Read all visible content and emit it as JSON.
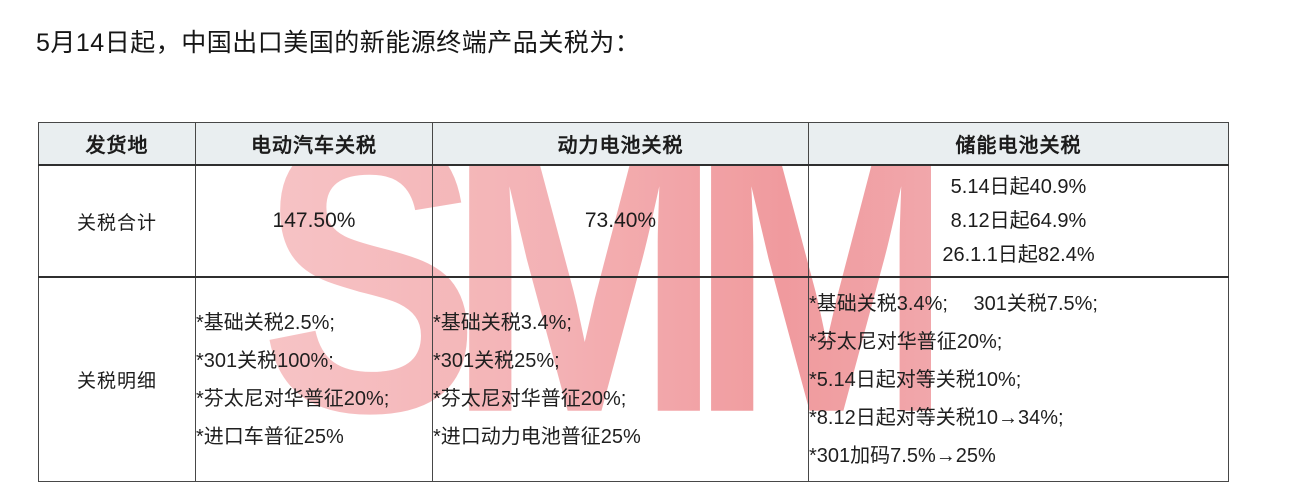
{
  "page": {
    "title": "5月14日起，中国出口美国的新能源终端产品关税为："
  },
  "watermark": {
    "text": "SMM",
    "color_light": "#f7bfc1",
    "color_dark": "#ef9296"
  },
  "table": {
    "columns": [
      "发货地",
      "电动汽车关税",
      "动力电池关税",
      "储能电池关税"
    ],
    "rows": [
      {
        "label": "关税合计",
        "ev_total": "147.50%",
        "power_battery_total": "73.40%",
        "storage_battery_total_lines": [
          "5.14日起40.9%",
          "8.12日起64.9%",
          "26.1.1日起82.4%"
        ]
      },
      {
        "label": "关税明细",
        "ev_detail_lines": [
          "*基础关税2.5%;",
          "*301关税100%;",
          "*芬太尼对华普征20%;",
          "*进口车普征25%"
        ],
        "power_battery_detail_lines": [
          "*基础关税3.4%;",
          "*301关税25%;",
          "*芬太尼对华普征20%;",
          "*进口动力电池普征25%"
        ],
        "storage_battery_detail_lines": [
          "*基础关税3.4%;　 301关税7.5%;",
          "*芬太尼对华普征20%;",
          "*5.14日起对等关税10%;",
          "*8.12日起对等关税10→34%;",
          "*301加码7.5%→25%"
        ]
      }
    ]
  }
}
